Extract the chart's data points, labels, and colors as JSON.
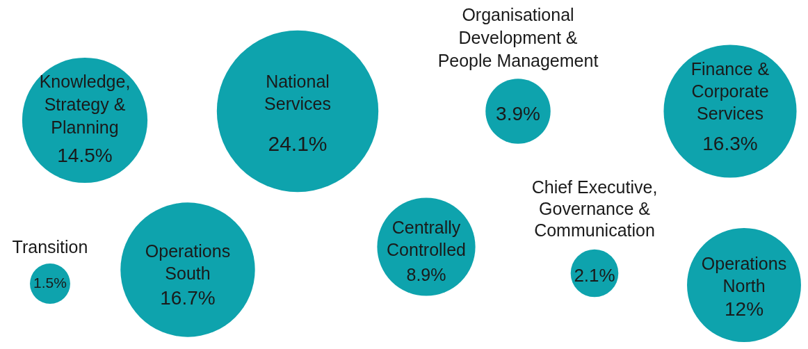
{
  "chart_data": {
    "type": "other",
    "categories": [
      "Knowledge, Strategy & Planning",
      "National Services",
      "Organisational Development & People Management",
      "Finance & Corporate Services",
      "Transition",
      "Operations South",
      "Centrally Controlled",
      "Chief Executive, Governance & Communication",
      "Operations North"
    ],
    "values": [
      14.5,
      24.1,
      3.9,
      16.3,
      1.5,
      16.7,
      8.9,
      2.1,
      12
    ],
    "value_labels": [
      "14.5%",
      "24.1%",
      "3.9%",
      "16.3%",
      "1.5%",
      "16.7%",
      "8.9%",
      "2.1%",
      "12%"
    ],
    "color": "#0ea3ad"
  }
}
